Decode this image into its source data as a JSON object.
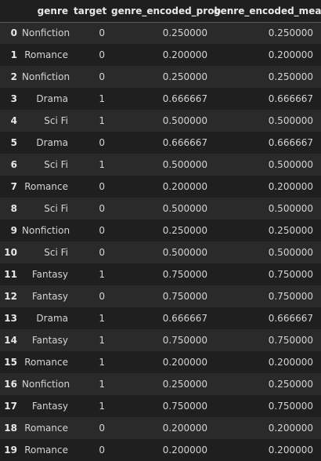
{
  "table": {
    "columns": [
      "",
      "genre",
      "target",
      "genre_encoded_prob",
      "genre_encoded_mean"
    ],
    "rows": [
      {
        "index": "0",
        "genre": "Nonfiction",
        "target": "0",
        "genre_encoded_prob": "0.250000",
        "genre_encoded_mean": "0.250000"
      },
      {
        "index": "1",
        "genre": "Romance",
        "target": "0",
        "genre_encoded_prob": "0.200000",
        "genre_encoded_mean": "0.200000"
      },
      {
        "index": "2",
        "genre": "Nonfiction",
        "target": "0",
        "genre_encoded_prob": "0.250000",
        "genre_encoded_mean": "0.250000"
      },
      {
        "index": "3",
        "genre": "Drama",
        "target": "1",
        "genre_encoded_prob": "0.666667",
        "genre_encoded_mean": "0.666667"
      },
      {
        "index": "4",
        "genre": "Sci Fi",
        "target": "1",
        "genre_encoded_prob": "0.500000",
        "genre_encoded_mean": "0.500000"
      },
      {
        "index": "5",
        "genre": "Drama",
        "target": "0",
        "genre_encoded_prob": "0.666667",
        "genre_encoded_mean": "0.666667"
      },
      {
        "index": "6",
        "genre": "Sci Fi",
        "target": "1",
        "genre_encoded_prob": "0.500000",
        "genre_encoded_mean": "0.500000"
      },
      {
        "index": "7",
        "genre": "Romance",
        "target": "0",
        "genre_encoded_prob": "0.200000",
        "genre_encoded_mean": "0.200000"
      },
      {
        "index": "8",
        "genre": "Sci Fi",
        "target": "0",
        "genre_encoded_prob": "0.500000",
        "genre_encoded_mean": "0.500000"
      },
      {
        "index": "9",
        "genre": "Nonfiction",
        "target": "0",
        "genre_encoded_prob": "0.250000",
        "genre_encoded_mean": "0.250000"
      },
      {
        "index": "10",
        "genre": "Sci Fi",
        "target": "0",
        "genre_encoded_prob": "0.500000",
        "genre_encoded_mean": "0.500000"
      },
      {
        "index": "11",
        "genre": "Fantasy",
        "target": "1",
        "genre_encoded_prob": "0.750000",
        "genre_encoded_mean": "0.750000"
      },
      {
        "index": "12",
        "genre": "Fantasy",
        "target": "0",
        "genre_encoded_prob": "0.750000",
        "genre_encoded_mean": "0.750000"
      },
      {
        "index": "13",
        "genre": "Drama",
        "target": "1",
        "genre_encoded_prob": "0.666667",
        "genre_encoded_mean": "0.666667"
      },
      {
        "index": "14",
        "genre": "Fantasy",
        "target": "1",
        "genre_encoded_prob": "0.750000",
        "genre_encoded_mean": "0.750000"
      },
      {
        "index": "15",
        "genre": "Romance",
        "target": "1",
        "genre_encoded_prob": "0.200000",
        "genre_encoded_mean": "0.200000"
      },
      {
        "index": "16",
        "genre": "Nonfiction",
        "target": "1",
        "genre_encoded_prob": "0.250000",
        "genre_encoded_mean": "0.250000"
      },
      {
        "index": "17",
        "genre": "Fantasy",
        "target": "1",
        "genre_encoded_prob": "0.750000",
        "genre_encoded_mean": "0.750000"
      },
      {
        "index": "18",
        "genre": "Romance",
        "target": "0",
        "genre_encoded_prob": "0.200000",
        "genre_encoded_mean": "0.200000"
      },
      {
        "index": "19",
        "genre": "Romance",
        "target": "0",
        "genre_encoded_prob": "0.200000",
        "genre_encoded_mean": "0.200000"
      }
    ]
  }
}
